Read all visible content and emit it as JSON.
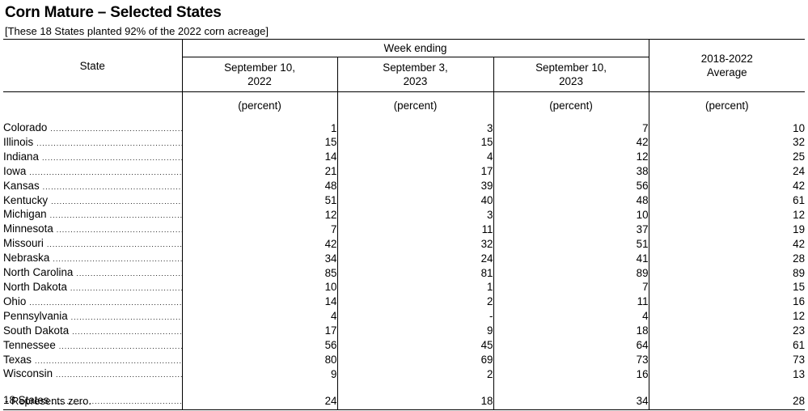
{
  "title": "Corn Mature – Selected States",
  "subtitle": "[These 18 States planted 92% of the 2022 corn acreage]",
  "headers": {
    "state": "State",
    "week_ending": "Week ending",
    "col1_line1": "September 10,",
    "col1_line2": "2022",
    "col2_line1": "September 3,",
    "col2_line2": "2023",
    "col3_line1": "September 10,",
    "col3_line2": "2023",
    "col4_line1": "2018-2022",
    "col4_line2": "Average",
    "unit": "(percent)"
  },
  "rows": [
    {
      "state": "Colorado",
      "sep10_2022": "1",
      "sep3_2023": "3",
      "sep10_2023": "7",
      "avg": "10"
    },
    {
      "state": "Illinois",
      "sep10_2022": "15",
      "sep3_2023": "15",
      "sep10_2023": "42",
      "avg": "32"
    },
    {
      "state": "Indiana",
      "sep10_2022": "14",
      "sep3_2023": "4",
      "sep10_2023": "12",
      "avg": "25"
    },
    {
      "state": "Iowa",
      "sep10_2022": "21",
      "sep3_2023": "17",
      "sep10_2023": "38",
      "avg": "24"
    },
    {
      "state": "Kansas",
      "sep10_2022": "48",
      "sep3_2023": "39",
      "sep10_2023": "56",
      "avg": "42"
    },
    {
      "state": "Kentucky",
      "sep10_2022": "51",
      "sep3_2023": "40",
      "sep10_2023": "48",
      "avg": "61"
    },
    {
      "state": "Michigan",
      "sep10_2022": "12",
      "sep3_2023": "3",
      "sep10_2023": "10",
      "avg": "12"
    },
    {
      "state": "Minnesota",
      "sep10_2022": "7",
      "sep3_2023": "11",
      "sep10_2023": "37",
      "avg": "19"
    },
    {
      "state": "Missouri",
      "sep10_2022": "42",
      "sep3_2023": "32",
      "sep10_2023": "51",
      "avg": "42"
    },
    {
      "state": "Nebraska",
      "sep10_2022": "34",
      "sep3_2023": "24",
      "sep10_2023": "41",
      "avg": "28"
    },
    {
      "state": "North Carolina",
      "sep10_2022": "85",
      "sep3_2023": "81",
      "sep10_2023": "89",
      "avg": "89"
    },
    {
      "state": "North Dakota",
      "sep10_2022": "10",
      "sep3_2023": "1",
      "sep10_2023": "7",
      "avg": "15"
    },
    {
      "state": "Ohio",
      "sep10_2022": "14",
      "sep3_2023": "2",
      "sep10_2023": "11",
      "avg": "16"
    },
    {
      "state": "Pennsylvania",
      "sep10_2022": "4",
      "sep3_2023": "-",
      "sep10_2023": "4",
      "avg": "12"
    },
    {
      "state": "South Dakota",
      "sep10_2022": "17",
      "sep3_2023": "9",
      "sep10_2023": "18",
      "avg": "23"
    },
    {
      "state": "Tennessee",
      "sep10_2022": "56",
      "sep3_2023": "45",
      "sep10_2023": "64",
      "avg": "61"
    },
    {
      "state": "Texas",
      "sep10_2022": "80",
      "sep3_2023": "69",
      "sep10_2023": "73",
      "avg": "73"
    },
    {
      "state": "Wisconsin",
      "sep10_2022": "9",
      "sep3_2023": "2",
      "sep10_2023": "16",
      "avg": "13"
    }
  ],
  "total": {
    "state": "18 States",
    "sep10_2022": "24",
    "sep3_2023": "18",
    "sep10_2023": "34",
    "avg": "28"
  },
  "footnote": "- Represents zero."
}
